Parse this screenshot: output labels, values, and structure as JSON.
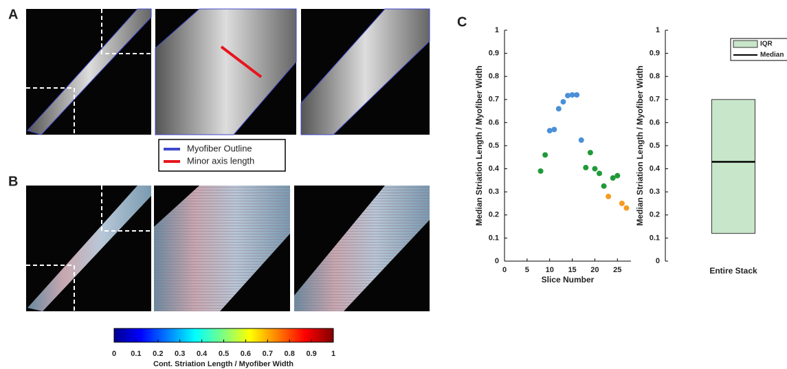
{
  "panels": {
    "a": "A",
    "b": "B",
    "c": "C"
  },
  "panel_a_legend": [
    {
      "label": "Myofiber Outline",
      "color": "#3f48cc"
    },
    {
      "label": "Minor axis length",
      "color": "#e8141c"
    }
  ],
  "colorbar": {
    "label": "Cont. Striation Length / Myofiber Width",
    "lim": [
      0,
      1
    ],
    "ticks": [
      0,
      0.1,
      0.2,
      0.3,
      0.4,
      0.5,
      0.6,
      0.7,
      0.8,
      0.9,
      1
    ]
  },
  "chart_data": [
    {
      "type": "scatter",
      "xlabel": "Slice Number",
      "ylabel": "Median Striation Length / Myofiber Width",
      "xlim": [
        0,
        28
      ],
      "xticks": [
        0,
        5,
        10,
        15,
        20,
        25
      ],
      "ylim": [
        0,
        1
      ],
      "yticks": [
        0,
        0.1,
        0.2,
        0.3,
        0.4,
        0.5,
        0.6,
        0.7,
        0.8,
        0.9,
        1
      ],
      "series": [
        {
          "color": "#4a90d9",
          "x": [
            10,
            11,
            12,
            13,
            14,
            15,
            16,
            17
          ],
          "values": [
            0.565,
            0.57,
            0.66,
            0.69,
            0.717,
            0.72,
            0.72,
            0.524
          ]
        },
        {
          "color": "#1f9a3a",
          "x": [
            8,
            9,
            18,
            19,
            20,
            21,
            22,
            24,
            25
          ],
          "values": [
            0.39,
            0.46,
            0.405,
            0.47,
            0.4,
            0.38,
            0.325,
            0.36,
            0.37
          ]
        },
        {
          "color": "#f39c1f",
          "x": [
            23,
            26,
            27
          ],
          "values": [
            0.28,
            0.25,
            0.23
          ]
        }
      ]
    },
    {
      "type": "box",
      "ylabel": "Median Striation Length / Myofiber Width",
      "categories": [
        "Entire Stack"
      ],
      "q1": [
        0.12
      ],
      "median": [
        0.43
      ],
      "q3": [
        0.7
      ],
      "color": "#c8e6c9",
      "ylim": [
        0,
        1
      ],
      "yticks": [
        0,
        0.1,
        0.2,
        0.3,
        0.4,
        0.5,
        0.6,
        0.7,
        0.8,
        0.9,
        1
      ],
      "legend": [
        "IQR",
        "Median"
      ]
    }
  ]
}
